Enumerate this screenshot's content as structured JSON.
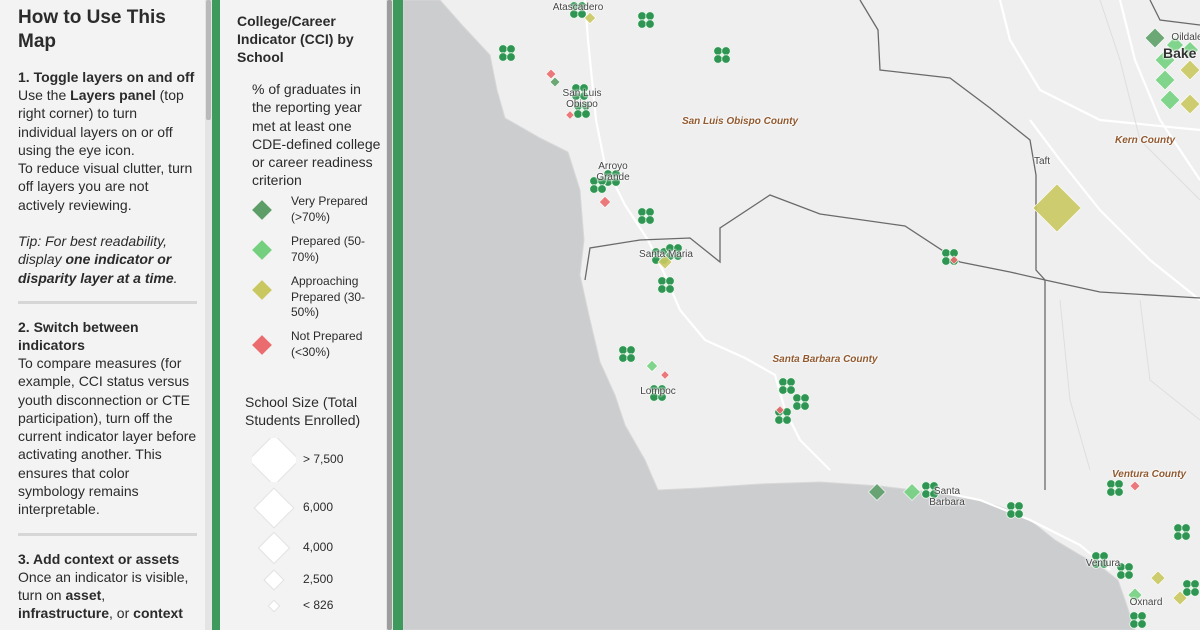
{
  "help_panel": {
    "title": "How to Use This Map",
    "sections": [
      {
        "heading": "1. Toggle layers on and off",
        "paragraphs": [
          [
            {
              "text": "Use the "
            },
            {
              "text": "Layers panel",
              "style": "bold"
            },
            {
              "text": " (top right corner) to turn individual layers on or off using the eye icon."
            }
          ],
          [
            {
              "text": "To reduce visual clutter, turn off layers you are not actively reviewing."
            }
          ]
        ],
        "note": [
          {
            "text": "Tip:",
            "style": "italic"
          },
          {
            "text": " For best readability, display ",
            "style": "italic"
          },
          {
            "text": "one indicator or disparity layer at a time",
            "style": "bold-italic"
          },
          {
            "text": ".",
            "style": "italic"
          }
        ]
      },
      {
        "heading": "2. Switch between indicators",
        "paragraphs": [
          [
            {
              "text": "To compare measures (for example, CCI status versus youth disconnection or CTE participation), turn off the current indicator layer before activating another. This ensures that color symbology remains interpretable."
            }
          ]
        ]
      },
      {
        "heading": "3. Add context or assets",
        "paragraphs": [
          [
            {
              "text": "Once an indicator is visible, turn on "
            },
            {
              "text": "asset",
              "style": "bold"
            },
            {
              "text": ", "
            },
            {
              "text": "infrastructure",
              "style": "bold"
            },
            {
              "text": ", or "
            },
            {
              "text": "context",
              "style": "bold"
            }
          ]
        ]
      }
    ]
  },
  "legend": {
    "title": "College/Career Indicator (CCI) by School",
    "description": "% of graduates in the reporting year met at least one CDE-defined college or career readiness criterion",
    "items": [
      {
        "label": "Very Prepared (>70%)",
        "color": "#5d9e68"
      },
      {
        "label": "Prepared (50-70%)",
        "color": "#74d07f"
      },
      {
        "label": "Approaching Prepared (30-50%)",
        "color": "#c9c860"
      },
      {
        "label": "Not Prepared (<30%)",
        "color": "#ea6c6e"
      }
    ],
    "size_title": "School Size (Total Students Enrolled)",
    "sizes": [
      "> 7,500",
      "6,000",
      "4,000",
      "2,500",
      "< 826"
    ]
  },
  "map": {
    "labels": [
      {
        "text": "Atascadero",
        "kind": "city"
      },
      {
        "text": "San Luis Obispo",
        "kind": "city"
      },
      {
        "text": "Arroyo Grande",
        "kind": "city"
      },
      {
        "text": "Santa Maria",
        "kind": "city"
      },
      {
        "text": "Lompoc",
        "kind": "city"
      },
      {
        "text": "Santa Barbara",
        "kind": "city"
      },
      {
        "text": "Ventura",
        "kind": "city"
      },
      {
        "text": "Oxnard",
        "kind": "city"
      },
      {
        "text": "Taft",
        "kind": "city"
      },
      {
        "text": "Oildale",
        "kind": "city"
      },
      {
        "text": "Bake",
        "kind": "major-city"
      },
      {
        "text": "San Luis Obispo County",
        "kind": "county"
      },
      {
        "text": "Kern County",
        "kind": "county"
      },
      {
        "text": "Santa Barbara County",
        "kind": "county"
      },
      {
        "text": "Ventura County",
        "kind": "county"
      }
    ]
  }
}
